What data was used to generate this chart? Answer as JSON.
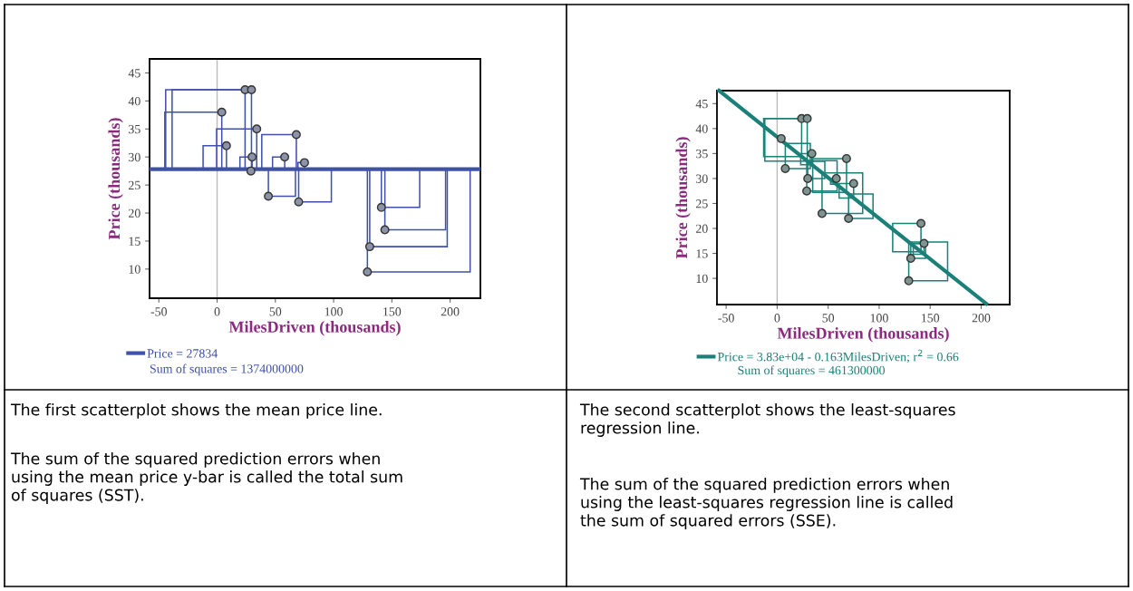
{
  "chart_data": [
    {
      "type": "scatter",
      "xlabel": "MilesDriven (thousands)",
      "ylabel": "Price (thousands)",
      "x": [
        24,
        29.5,
        4,
        34,
        8,
        30,
        29,
        68,
        58,
        75,
        44,
        70,
        141,
        144,
        131,
        129
      ],
      "series": [
        {
          "color": "#8c92a8",
          "values": [
            42,
            42,
            38,
            35,
            32,
            30,
            27.5,
            34,
            30,
            29,
            23,
            22,
            21,
            17,
            14,
            9.5
          ]
        }
      ],
      "xlim": [
        -58,
        226
      ],
      "xticks": [
        -50,
        0,
        50,
        100,
        150,
        200
      ],
      "ylim": [
        4.8,
        47.5
      ],
      "yticks": [
        10,
        15,
        20,
        25,
        30,
        35,
        40,
        45
      ],
      "ref_lines": [
        {
          "axis": "y",
          "value": 27.834,
          "label": "Price = 27834",
          "color": "#3f51a8"
        },
        {
          "axis": "x",
          "value": 0,
          "color": "#bbbbbb"
        }
      ],
      "marker": "circle",
      "grid": false,
      "legend": "bottom",
      "annotations": [
        "Sum of squares = 1374000000",
        "The first scatterplot shows the mean price line.",
        "The sum of the squared prediction errors when\nusing the mean price y-bar is called the total sum\nof squares (SST)."
      ]
    },
    {
      "type": "scatter",
      "xlabel": "MilesDriven (thousands)",
      "ylabel": "Price (thousands)",
      "x": [
        24,
        29.5,
        4,
        34,
        8,
        30,
        29,
        68,
        58,
        75,
        44,
        70,
        141,
        144,
        131,
        129
      ],
      "series": [
        {
          "color": "#7f9490",
          "values": [
            42,
            42,
            38,
            35,
            32,
            30,
            27.5,
            34,
            30,
            29,
            23,
            22,
            21,
            17,
            14,
            9.5
          ]
        },
        {
          "type": "line",
          "name": "Price = 3.83e+04 - 0.163MilesDriven; r$^{2}$ = 0.66",
          "color": "#1a8078",
          "marker": "none",
          "x": [
            -57,
            205
          ],
          "values": [
            47.6,
            4.9
          ]
        }
      ],
      "xlim": [
        -59,
        228
      ],
      "xticks": [
        -50,
        0,
        50,
        100,
        150,
        200
      ],
      "ylim": [
        4.75,
        47.6
      ],
      "yticks": [
        10,
        15,
        20,
        25,
        30,
        35,
        40,
        45
      ],
      "ref_lines": [
        {
          "axis": "x",
          "value": 0,
          "color": "#bbbbbb"
        }
      ],
      "marker": "circle",
      "grid": false,
      "legend": "bottom",
      "annotations": [
        "Sum of squares = 461300000",
        "The second scatterplot shows the least-squares\nregression line.",
        "The sum of the squared prediction errors when\nusing the least-squares regression line is called\nthe sum of squared errors (SSE)."
      ]
    }
  ]
}
